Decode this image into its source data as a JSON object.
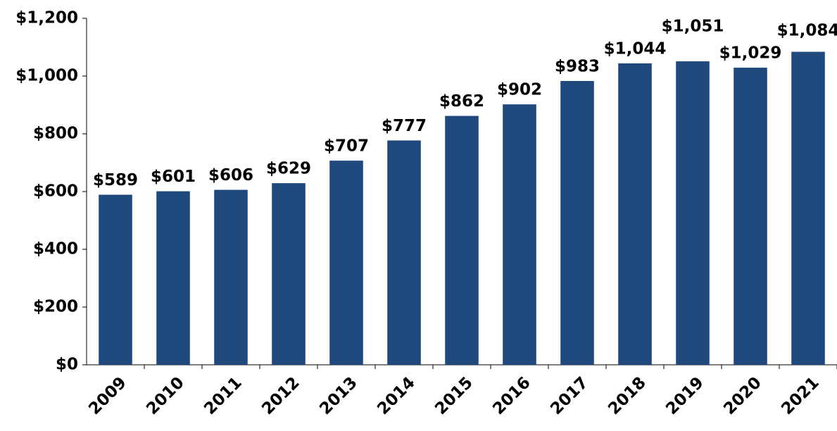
{
  "chart_data": {
    "type": "bar",
    "categories": [
      "2009",
      "2010",
      "2011",
      "2012",
      "2013",
      "2014",
      "2015",
      "2016",
      "2017",
      "2018",
      "2019",
      "2020",
      "2021"
    ],
    "values": [
      589,
      601,
      606,
      629,
      707,
      777,
      862,
      902,
      983,
      1044,
      1051,
      1029,
      1084
    ],
    "value_labels": [
      "$589",
      "$601",
      "$606",
      "$629",
      "$707",
      "$777",
      "$862",
      "$902",
      "$983",
      "$1,044",
      "$1,051",
      "$1,029",
      "$1,084"
    ],
    "color": "#1f497d",
    "ylim": [
      0,
      1200
    ],
    "yticks": [
      {
        "value": 0,
        "label": "$0"
      },
      {
        "value": 200,
        "label": "$200"
      },
      {
        "value": 400,
        "label": "$400"
      },
      {
        "value": 600,
        "label": "$600"
      },
      {
        "value": 800,
        "label": "$800"
      },
      {
        "value": 1000,
        "label": "$1,000"
      },
      {
        "value": 1200,
        "label": "$1,200"
      }
    ],
    "grid": false
  }
}
